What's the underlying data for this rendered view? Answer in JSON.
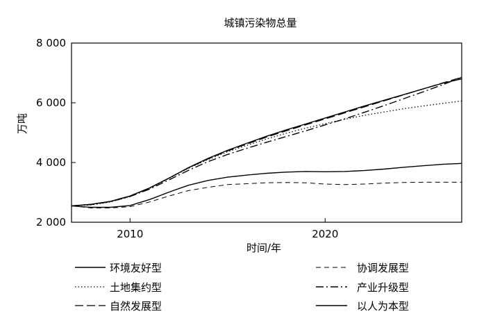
{
  "chart_data": {
    "type": "line",
    "title": "城镇污染物总量",
    "xlabel": "时间/年",
    "ylabel": "万吨",
    "xlim": [
      2007,
      2027
    ],
    "ylim": [
      2000,
      8000
    ],
    "x_ticks": [
      2010,
      2020
    ],
    "x_tick_labels": [
      "2010",
      "2020"
    ],
    "y_ticks": [
      2000,
      4000,
      6000,
      8000
    ],
    "y_tick_labels": [
      "2 000",
      "4 000",
      "6 000",
      "8 000"
    ],
    "grid": false,
    "legend_position": "bottom",
    "x": [
      2007,
      2008,
      2009,
      2010,
      2011,
      2012,
      2013,
      2014,
      2015,
      2016,
      2017,
      2018,
      2019,
      2020,
      2021,
      2022,
      2023,
      2024,
      2025,
      2026,
      2027
    ],
    "series": [
      {
        "name": "环境友好型",
        "style": "solid",
        "values": [
          2550,
          2500,
          2500,
          2560,
          2760,
          3010,
          3240,
          3400,
          3510,
          3580,
          3640,
          3680,
          3700,
          3690,
          3700,
          3730,
          3780,
          3840,
          3890,
          3940,
          3970
        ]
      },
      {
        "name": "土地集约型",
        "style": "dotted",
        "values": [
          2550,
          2580,
          2680,
          2860,
          3130,
          3470,
          3810,
          4100,
          4360,
          4580,
          4790,
          4980,
          5150,
          5300,
          5450,
          5580,
          5690,
          5800,
          5890,
          5980,
          6060
        ]
      },
      {
        "name": "自然发展型",
        "style": "longdash",
        "values": [
          2550,
          2600,
          2700,
          2880,
          3150,
          3480,
          3820,
          4120,
          4390,
          4620,
          4850,
          5060,
          5260,
          5460,
          5660,
          5860,
          6060,
          6260,
          6460,
          6660,
          6850
        ]
      },
      {
        "name": "协调发展型",
        "style": "shortdash",
        "values": [
          2550,
          2480,
          2480,
          2520,
          2680,
          2880,
          3060,
          3170,
          3260,
          3290,
          3320,
          3330,
          3320,
          3280,
          3260,
          3280,
          3310,
          3330,
          3340,
          3340,
          3340
        ]
      },
      {
        "name": "产业升级型",
        "style": "dashdot",
        "values": [
          2550,
          2590,
          2690,
          2860,
          3110,
          3420,
          3740,
          4030,
          4270,
          4480,
          4680,
          4870,
          5060,
          5260,
          5460,
          5680,
          5900,
          6130,
          6360,
          6600,
          6850
        ]
      },
      {
        "name": "以人为本型",
        "style": "solid",
        "values": [
          2550,
          2600,
          2700,
          2880,
          3150,
          3480,
          3830,
          4140,
          4410,
          4650,
          4880,
          5090,
          5290,
          5490,
          5690,
          5890,
          6080,
          6270,
          6460,
          6650,
          6800
        ]
      }
    ]
  }
}
